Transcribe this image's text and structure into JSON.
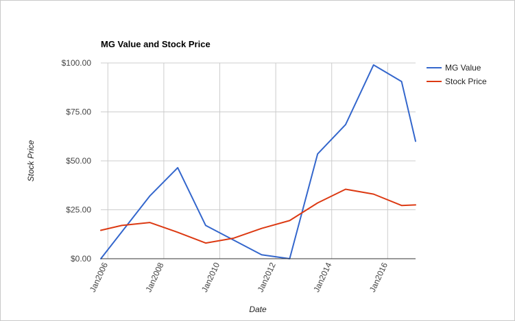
{
  "chart_data": {
    "type": "line",
    "title": "MG Value and Stock Price",
    "xlabel": "Date",
    "ylabel": "Stock Price",
    "x_ticks": [
      "Jan2006",
      "Jan2008",
      "Jan2010",
      "Jan2012",
      "Jan2014",
      "Jan2016"
    ],
    "x_range": [
      "2005-10-01",
      "2016-12-31"
    ],
    "y_ticks": [
      "$0.00",
      "$25.00",
      "$50.00",
      "$75.00",
      "$100.00"
    ],
    "ylim": [
      0,
      100
    ],
    "grid": true,
    "legend_position": "right",
    "series": [
      {
        "name": "MG Value",
        "color": "#3366cc",
        "points": [
          {
            "x": "2005-10-01",
            "y": 0
          },
          {
            "x": "2007-07-01",
            "y": 32
          },
          {
            "x": "2008-07-01",
            "y": 46.5
          },
          {
            "x": "2009-07-01",
            "y": 17
          },
          {
            "x": "2011-07-01",
            "y": 2
          },
          {
            "x": "2012-07-01",
            "y": 0
          },
          {
            "x": "2013-07-01",
            "y": 53.5
          },
          {
            "x": "2014-07-01",
            "y": 68.5
          },
          {
            "x": "2015-07-01",
            "y": 99
          },
          {
            "x": "2016-07-01",
            "y": 90.5
          },
          {
            "x": "2016-12-31",
            "y": 60
          }
        ]
      },
      {
        "name": "Stock Price",
        "color": "#dc3912",
        "points": [
          {
            "x": "2005-10-01",
            "y": 14.5
          },
          {
            "x": "2006-07-01",
            "y": 17
          },
          {
            "x": "2007-07-01",
            "y": 18.5
          },
          {
            "x": "2008-07-01",
            "y": 13.5
          },
          {
            "x": "2009-07-01",
            "y": 8
          },
          {
            "x": "2010-07-01",
            "y": 10.5
          },
          {
            "x": "2011-07-01",
            "y": 15.5
          },
          {
            "x": "2012-07-01",
            "y": 19.5
          },
          {
            "x": "2013-07-01",
            "y": 28.5
          },
          {
            "x": "2014-07-01",
            "y": 35.5
          },
          {
            "x": "2015-07-01",
            "y": 33
          },
          {
            "x": "2016-07-01",
            "y": 27.2
          },
          {
            "x": "2016-12-31",
            "y": 27.5
          }
        ]
      }
    ]
  }
}
